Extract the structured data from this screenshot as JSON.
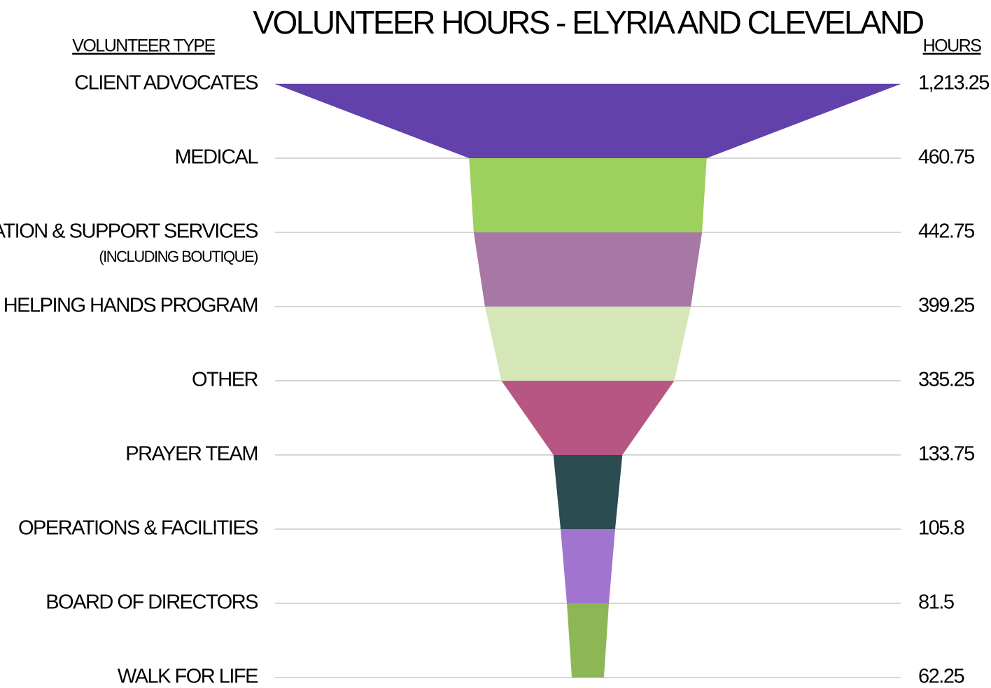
{
  "chart_data": {
    "type": "funnel",
    "title": "VOLUNTEER HOURS - ELYRIA AND CLEVELAND",
    "category_header": "VOLUNTEER TYPE",
    "value_header": "HOURS",
    "categories": [
      "CLIENT ADVOCATES",
      "MEDICAL",
      "EDUCATION & SUPPORT SERVICES",
      "HELPING HANDS PROGRAM",
      "OTHER",
      "PRAYER TEAM",
      "OPERATIONS & FACILITIES",
      "BOARD OF DIRECTORS",
      "WALK FOR LIFE"
    ],
    "category_notes": [
      null,
      null,
      "(INCLUDING BOUTIQUE)",
      null,
      null,
      null,
      null,
      null,
      null
    ],
    "values": [
      1213.25,
      460.75,
      442.75,
      399.25,
      335.25,
      133.75,
      105.8,
      81.5,
      62.25
    ],
    "value_labels": [
      "1,213.25",
      "460.75",
      "442.75",
      "399.25",
      "335.25",
      "133.75",
      "105.8",
      "81.5",
      "62.25"
    ],
    "colors": [
      "#6241aa",
      "#9dd05c",
      "#a777a5",
      "#d5e6b7",
      "#b75682",
      "#2b4c51",
      "#a175cf",
      "#8db755"
    ]
  }
}
